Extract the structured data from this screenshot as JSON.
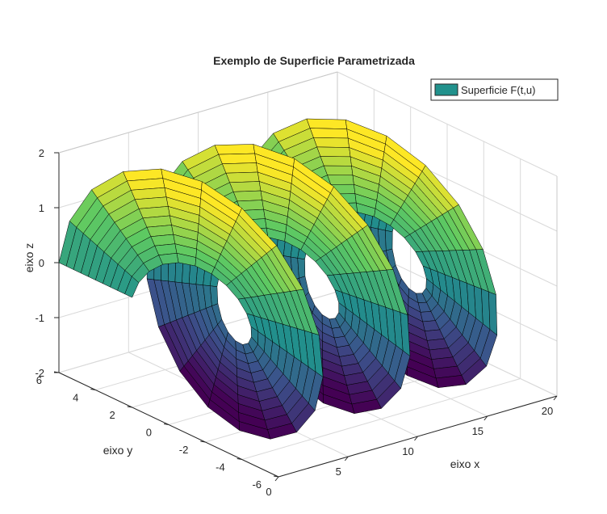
{
  "chart_data": {
    "type": "surface",
    "title": "Exemplo de Superficie Parametrizada",
    "xlabel": "eixo x",
    "ylabel": "eixo y",
    "zlabel": "eixo z",
    "xlim": [
      0,
      20
    ],
    "ylim": [
      -6,
      6
    ],
    "zlim": [
      -2,
      2
    ],
    "x_ticks": [
      0,
      5,
      10,
      15,
      20
    ],
    "y_ticks": [
      -6,
      -4,
      -2,
      0,
      2,
      4,
      6
    ],
    "z_ticks": [
      -2,
      -1,
      0,
      1,
      2
    ],
    "x_tick_labels": [
      "0",
      "5",
      "10",
      "15",
      "20"
    ],
    "y_tick_labels": [
      "-6",
      "-4",
      "-2",
      "0",
      "2",
      "4",
      "6"
    ],
    "z_tick_labels": [
      "-2",
      "-1",
      "0",
      "1",
      "2"
    ],
    "grid": true,
    "colormap": [
      "#440154",
      "#3b528b",
      "#21918c",
      "#5ec962",
      "#fde725"
    ],
    "edge_color": "#000000",
    "legend": {
      "position": "top-right",
      "entries": [
        {
          "label": "Superficie F(t,u)",
          "color": "#21918c"
        }
      ]
    },
    "series": [
      {
        "name": "Superficie F(t,u)",
        "parametrization": {
          "x": "t",
          "y": "(4 + u) * cos(t)",
          "z": "(4 + u) * sin(t)",
          "t_range": [
            0,
            19.3
          ],
          "u_range": [
            -2,
            2
          ],
          "z_display_scale": 0.4,
          "t_steps": 58,
          "u_steps": 10
        }
      }
    ]
  }
}
